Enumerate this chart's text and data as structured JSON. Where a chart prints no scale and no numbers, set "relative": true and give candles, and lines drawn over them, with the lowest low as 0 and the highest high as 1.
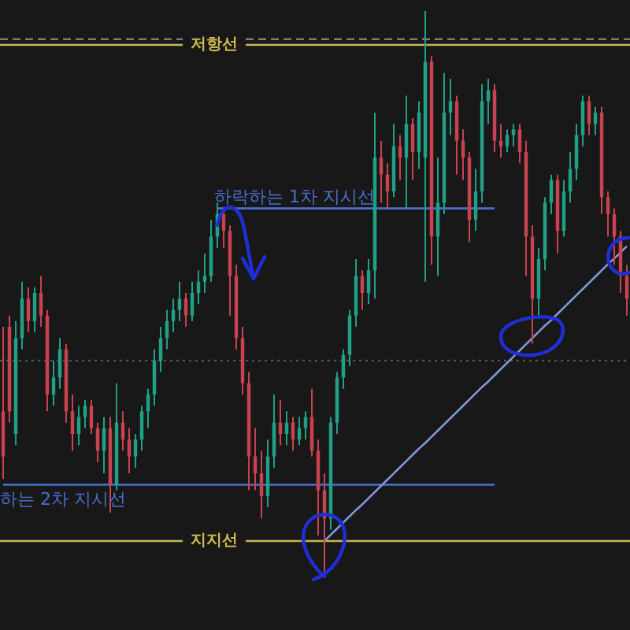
{
  "chart_data": {
    "type": "candlestick",
    "relative": true,
    "categories": [
      null,
      null,
      null,
      null,
      null,
      null,
      null,
      null,
      null,
      null,
      null,
      null,
      null,
      null,
      null,
      null,
      null,
      null,
      null,
      null,
      null,
      null,
      null,
      null,
      null,
      null,
      null,
      null,
      null,
      null,
      null,
      null,
      null,
      null,
      null,
      null,
      null,
      null,
      null,
      null,
      null,
      null,
      null,
      null,
      null,
      null,
      null,
      null,
      null,
      null,
      null,
      null,
      null,
      null,
      null,
      null,
      null,
      null,
      null,
      null,
      null,
      null,
      null,
      null,
      null,
      null,
      null,
      null,
      null,
      null,
      null,
      null,
      null,
      null,
      null,
      null,
      null,
      null,
      null,
      null,
      null,
      null,
      null,
      null,
      null,
      null,
      null,
      null,
      null,
      null,
      null,
      null,
      null,
      null,
      null,
      null,
      null,
      null,
      null,
      null
    ],
    "ohlc": [
      [
        0.29,
        0.44,
        0.17,
        0.21
      ],
      [
        0.44,
        0.46,
        0.27,
        0.29
      ],
      [
        0.25,
        0.45,
        0.23,
        0.42
      ],
      [
        0.42,
        0.52,
        0.4,
        0.49
      ],
      [
        0.49,
        0.51,
        0.43,
        0.45
      ],
      [
        0.45,
        0.51,
        0.43,
        0.5
      ],
      [
        0.5,
        0.53,
        0.44,
        0.46
      ],
      [
        0.46,
        0.47,
        0.29,
        0.32
      ],
      [
        0.32,
        0.38,
        0.3,
        0.35
      ],
      [
        0.35,
        0.42,
        0.33,
        0.4
      ],
      [
        0.4,
        0.41,
        0.27,
        0.29
      ],
      [
        0.29,
        0.32,
        0.22,
        0.25
      ],
      [
        0.25,
        0.3,
        0.23,
        0.28
      ],
      [
        0.28,
        0.31,
        0.26,
        0.3
      ],
      [
        0.3,
        0.31,
        0.25,
        0.26
      ],
      [
        0.26,
        0.27,
        0.2,
        0.22
      ],
      [
        0.22,
        0.28,
        0.18,
        0.26
      ],
      [
        0.26,
        0.28,
        0.11,
        0.16
      ],
      [
        0.16,
        0.34,
        0.15,
        0.27
      ],
      [
        0.27,
        0.29,
        0.22,
        0.24
      ],
      [
        0.24,
        0.26,
        0.18,
        0.21
      ],
      [
        0.21,
        0.25,
        0.19,
        0.24
      ],
      [
        0.24,
        0.3,
        0.22,
        0.29
      ],
      [
        0.29,
        0.33,
        0.26,
        0.32
      ],
      [
        0.32,
        0.4,
        0.3,
        0.38
      ],
      [
        0.38,
        0.44,
        0.36,
        0.42
      ],
      [
        0.42,
        0.47,
        0.4,
        0.45
      ],
      [
        0.45,
        0.49,
        0.43,
        0.47
      ],
      [
        0.47,
        0.52,
        0.45,
        0.49
      ],
      [
        0.49,
        0.5,
        0.44,
        0.46
      ],
      [
        0.46,
        0.52,
        0.45,
        0.5
      ],
      [
        0.5,
        0.54,
        0.48,
        0.52
      ],
      [
        0.52,
        0.57,
        0.5,
        0.53
      ],
      [
        0.53,
        0.63,
        0.52,
        0.6
      ],
      [
        0.6,
        0.66,
        0.58,
        0.64
      ],
      [
        0.64,
        0.65,
        0.58,
        0.61
      ],
      [
        0.61,
        0.62,
        0.46,
        0.53
      ],
      [
        0.53,
        0.55,
        0.4,
        0.42
      ],
      [
        0.42,
        0.44,
        0.32,
        0.34
      ],
      [
        0.34,
        0.36,
        0.15,
        0.21
      ],
      [
        0.21,
        0.26,
        0.15,
        0.18
      ],
      [
        0.18,
        0.22,
        0.1,
        0.14
      ],
      [
        0.14,
        0.24,
        0.12,
        0.21
      ],
      [
        0.21,
        0.32,
        0.19,
        0.27
      ],
      [
        0.27,
        0.31,
        0.23,
        0.25
      ],
      [
        0.25,
        0.29,
        0.23,
        0.27
      ],
      [
        0.27,
        0.28,
        0.22,
        0.24
      ],
      [
        0.24,
        0.28,
        0.23,
        0.26
      ],
      [
        0.26,
        0.29,
        0.24,
        0.28
      ],
      [
        0.28,
        0.33,
        0.21,
        0.22
      ],
      [
        0.22,
        0.24,
        0.07,
        0.15
      ],
      [
        0.15,
        0.18,
        0.0,
        0.1
      ],
      [
        0.1,
        0.28,
        0.08,
        0.27
      ],
      [
        0.27,
        0.36,
        0.25,
        0.35
      ],
      [
        0.35,
        0.4,
        0.33,
        0.39
      ],
      [
        0.39,
        0.47,
        0.37,
        0.46
      ],
      [
        0.46,
        0.56,
        0.44,
        0.53
      ],
      [
        0.53,
        0.54,
        0.47,
        0.5
      ],
      [
        0.5,
        0.56,
        0.48,
        0.54
      ],
      [
        0.54,
        0.82,
        0.49,
        0.74
      ],
      [
        0.74,
        0.77,
        0.66,
        0.71
      ],
      [
        0.71,
        0.73,
        0.65,
        0.68
      ],
      [
        0.68,
        0.8,
        0.67,
        0.76
      ],
      [
        0.76,
        0.78,
        0.7,
        0.74
      ],
      [
        0.74,
        0.85,
        0.65,
        0.8
      ],
      [
        0.8,
        0.81,
        0.7,
        0.75
      ],
      [
        0.75,
        0.84,
        0.72,
        0.82
      ],
      [
        0.74,
        1.0,
        0.52,
        0.91
      ],
      [
        0.91,
        0.92,
        0.55,
        0.6
      ],
      [
        0.6,
        0.74,
        0.53,
        0.66
      ],
      [
        0.66,
        0.89,
        0.64,
        0.82
      ],
      [
        0.82,
        0.88,
        0.78,
        0.84
      ],
      [
        0.84,
        0.85,
        0.71,
        0.77
      ],
      [
        0.77,
        0.79,
        0.7,
        0.74
      ],
      [
        0.74,
        0.75,
        0.59,
        0.63
      ],
      [
        0.63,
        0.72,
        0.61,
        0.68
      ],
      [
        0.68,
        0.87,
        0.66,
        0.84
      ],
      [
        0.84,
        0.88,
        0.8,
        0.86
      ],
      [
        0.86,
        0.87,
        0.75,
        0.77
      ],
      [
        0.77,
        0.8,
        0.74,
        0.76
      ],
      [
        0.76,
        0.79,
        0.75,
        0.78
      ],
      [
        0.78,
        0.8,
        0.76,
        0.79
      ],
      [
        0.79,
        0.8,
        0.73,
        0.75
      ],
      [
        0.75,
        0.77,
        0.53,
        0.6
      ],
      [
        0.6,
        0.62,
        0.41,
        0.49
      ],
      [
        0.49,
        0.58,
        0.46,
        0.56
      ],
      [
        0.56,
        0.67,
        0.54,
        0.66
      ],
      [
        0.66,
        0.71,
        0.64,
        0.7
      ],
      [
        0.7,
        0.71,
        0.57,
        0.61
      ],
      [
        0.61,
        0.7,
        0.6,
        0.68
      ],
      [
        0.68,
        0.75,
        0.66,
        0.72
      ],
      [
        0.72,
        0.8,
        0.7,
        0.78
      ],
      [
        0.78,
        0.85,
        0.76,
        0.84
      ],
      [
        0.84,
        0.85,
        0.78,
        0.8
      ],
      [
        0.8,
        0.83,
        0.78,
        0.82
      ],
      [
        0.82,
        0.83,
        0.64,
        0.67
      ],
      [
        0.67,
        0.68,
        0.6,
        0.64
      ],
      [
        0.64,
        0.65,
        0.55,
        0.6
      ],
      [
        0.6,
        0.61,
        0.5,
        0.53
      ],
      [
        0.53,
        0.55,
        0.46,
        0.49
      ]
    ],
    "colors": [
      "#c8424f",
      "#c8424f",
      "#22a085",
      "#22a085",
      "#c8424f",
      "#22a085",
      "#c8424f",
      "#c8424f",
      "#22a085",
      "#22a085",
      "#c8424f",
      "#c8424f",
      "#22a085",
      "#22a085",
      "#c8424f",
      "#c8424f",
      "#22a085",
      "#c8424f",
      "#22a085",
      "#c8424f",
      "#c8424f",
      "#22a085",
      "#22a085",
      "#22a085",
      "#22a085",
      "#22a085",
      "#22a085",
      "#22a085",
      "#22a085",
      "#c8424f",
      "#22a085",
      "#22a085",
      "#22a085",
      "#22a085",
      "#22a085",
      "#c8424f",
      "#c8424f",
      "#c8424f",
      "#c8424f",
      "#c8424f",
      "#c8424f",
      "#c8424f",
      "#22a085",
      "#22a085",
      "#c8424f",
      "#22a085",
      "#c8424f",
      "#22a085",
      "#22a085",
      "#c8424f",
      "#c8424f",
      "#c8424f",
      "#22a085",
      "#22a085",
      "#22a085",
      "#22a085",
      "#22a085",
      "#c8424f",
      "#22a085",
      "#22a085",
      "#c8424f",
      "#c8424f",
      "#22a085",
      "#c8424f",
      "#22a085",
      "#c8424f",
      "#22a085",
      "#22a085",
      "#c8424f",
      "#22a085",
      "#22a085",
      "#22a085",
      "#c8424f",
      "#c8424f",
      "#c8424f",
      "#22a085",
      "#22a085",
      "#22a085",
      "#c8424f",
      "#c8424f",
      "#22a085",
      "#22a085",
      "#c8424f",
      "#c8424f",
      "#c8424f",
      "#22a085",
      "#22a085",
      "#22a085",
      "#c8424f",
      "#22a085",
      "#22a085",
      "#22a085",
      "#22a085",
      "#c8424f",
      "#22a085",
      "#c8424f",
      "#c8424f",
      "#c8424f",
      "#c8424f",
      "#c8424f"
    ],
    "series": [
      {
        "name": "하락하는 1차 지시선",
        "type": "line",
        "color": "#4a6fcf",
        "values": [
          null,
          null,
          null,
          null,
          null,
          null,
          null,
          null,
          null,
          null,
          null,
          null,
          null,
          null,
          null,
          null,
          null,
          null,
          null,
          null,
          null,
          null,
          null,
          null,
          null,
          null,
          null,
          null,
          null,
          null,
          null,
          null,
          null,
          null,
          0.65,
          0.65,
          0.65,
          0.65,
          0.65,
          0.65,
          0.65,
          0.65,
          0.65,
          0.65,
          0.65,
          0.65,
          0.65,
          0.65,
          0.65,
          0.65,
          0.65,
          0.65,
          0.65,
          0.65,
          0.65,
          0.65,
          0.65,
          0.65,
          0.65,
          0.65,
          0.65,
          0.65,
          0.65,
          0.65,
          0.65,
          0.65,
          0.65,
          0.65,
          0.65,
          0.65,
          0.65,
          0.65,
          0.65,
          0.65,
          0.65,
          0.65,
          0.65,
          0.65,
          0.65,
          null,
          null,
          null,
          null,
          null,
          null,
          null,
          null,
          null,
          null,
          null,
          null,
          null,
          null,
          null,
          null,
          null,
          null,
          null,
          null,
          null
        ]
      },
      {
        "name": "하는 2차 지시선",
        "type": "line",
        "color": "#4a6fcf",
        "values": [
          0.16,
          0.16,
          0.16,
          0.16,
          0.16,
          0.16,
          0.16,
          0.16,
          0.16,
          0.16,
          0.16,
          0.16,
          0.16,
          0.16,
          0.16,
          0.16,
          0.16,
          0.16,
          0.16,
          0.16,
          0.16,
          0.16,
          0.16,
          0.16,
          0.16,
          0.16,
          0.16,
          0.16,
          0.16,
          0.16,
          0.16,
          0.16,
          0.16,
          0.16,
          0.16,
          0.16,
          0.16,
          0.16,
          0.16,
          0.16,
          0.16,
          0.16,
          0.16,
          0.16,
          0.16,
          0.16,
          0.16,
          0.16,
          0.16,
          0.16,
          0.16,
          0.16,
          0.16,
          0.16,
          0.16,
          0.16,
          0.16,
          0.16,
          0.16,
          0.16,
          0.16,
          0.16,
          0.16,
          0.16,
          0.16,
          0.16,
          0.16,
          0.16,
          0.16,
          0.16,
          0.16,
          0.16,
          0.16,
          0.16,
          0.16,
          0.16,
          0.16,
          0.16,
          0.16,
          null,
          null,
          null,
          null,
          null,
          null,
          null,
          null,
          null,
          null,
          null,
          null,
          null,
          null,
          null,
          null,
          null,
          null,
          null,
          null,
          null
        ]
      },
      {
        "type": "line",
        "color": "#7f97dc",
        "values": [
          null,
          null,
          null,
          null,
          null,
          null,
          null,
          null,
          null,
          null,
          null,
          null,
          null,
          null,
          null,
          null,
          null,
          null,
          null,
          null,
          null,
          null,
          null,
          null,
          null,
          null,
          null,
          null,
          null,
          null,
          null,
          null,
          null,
          null,
          null,
          null,
          null,
          null,
          null,
          null,
          null,
          null,
          null,
          null,
          null,
          null,
          null,
          null,
          null,
          null,
          null,
          0.06,
          0.071,
          0.082,
          0.093,
          0.104,
          0.115,
          0.125,
          0.136,
          0.147,
          0.158,
          0.169,
          0.18,
          0.191,
          0.202,
          0.213,
          0.224,
          0.234,
          0.245,
          0.256,
          0.267,
          0.278,
          0.289,
          0.3,
          0.311,
          0.322,
          0.333,
          0.343,
          0.354,
          0.365,
          0.376,
          0.387,
          0.398,
          0.409,
          0.42,
          0.431,
          0.442,
          0.452,
          0.463,
          0.474,
          0.485,
          0.496,
          0.507,
          0.518,
          0.529,
          0.54,
          0.551,
          0.561,
          0.572,
          0.583
        ]
      }
    ],
    "ref_lines": [
      {
        "axis": "y",
        "value": 0.95,
        "color": "#7c7c7c",
        "line_style": "dashed"
      },
      {
        "axis": "y",
        "value": 0.94,
        "label": "저항선",
        "color": "#c9b74c"
      },
      {
        "axis": "y",
        "value": 0.38,
        "color": "#3f5e52",
        "line_style": "dotted"
      },
      {
        "axis": "y",
        "value": 0.06,
        "label": "지지선",
        "color": "#c9b74c"
      }
    ]
  }
}
